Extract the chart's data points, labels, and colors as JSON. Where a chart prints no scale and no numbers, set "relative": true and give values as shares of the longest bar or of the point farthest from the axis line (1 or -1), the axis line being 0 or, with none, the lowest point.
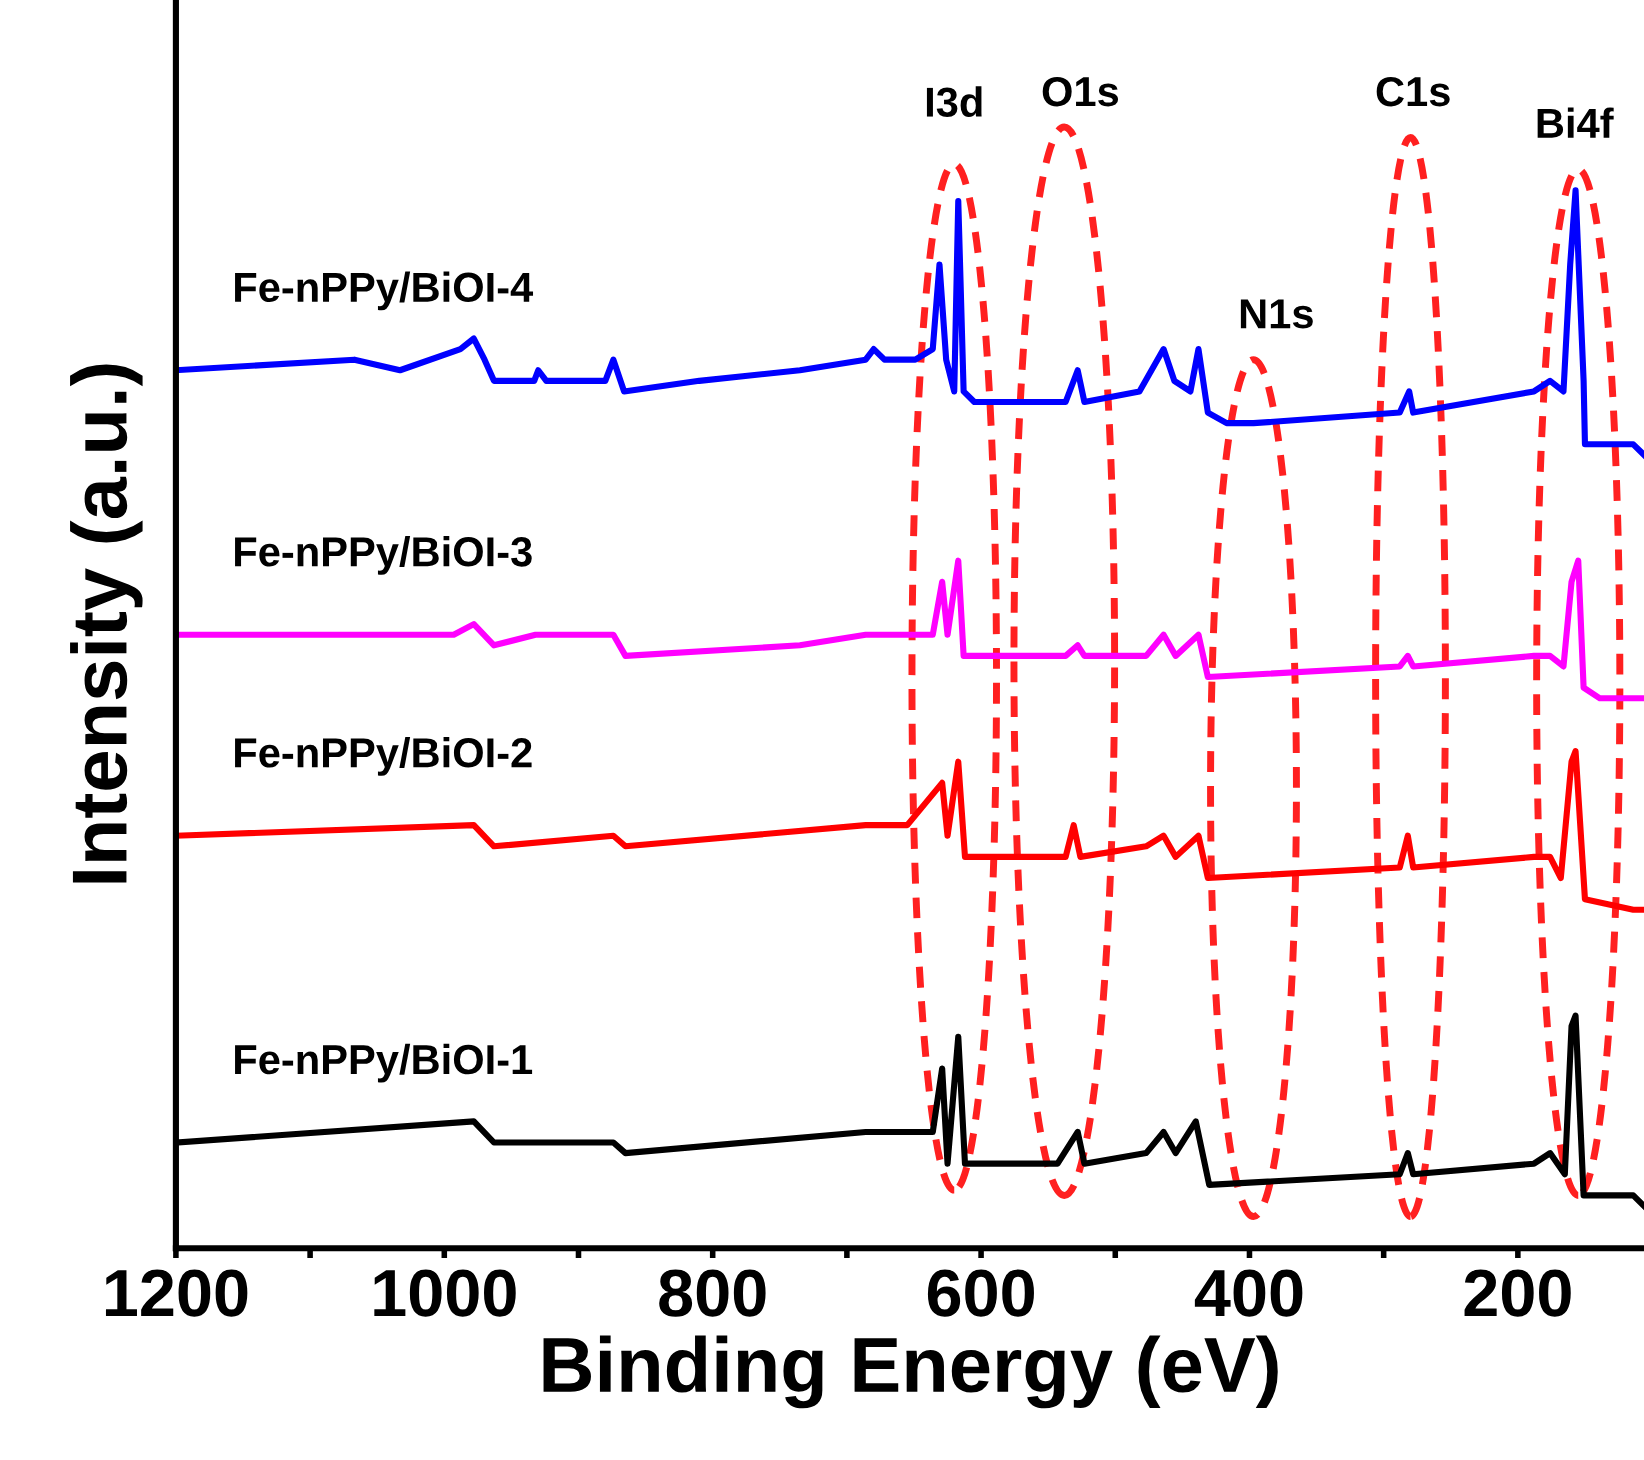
{
  "chart_data": {
    "type": "line",
    "relative": true,
    "xlabel": "Binding Energy (eV)",
    "ylabel": "Intensity (a.u.)",
    "xlim": [
      1200,
      106
    ],
    "xticks": [
      1200,
      {
        "value": 1100,
        "label": null
      },
      1000,
      {
        "value": 900,
        "label": null
      },
      800,
      {
        "value": 700,
        "label": null
      },
      600,
      {
        "value": 500,
        "label": null
      },
      400,
      {
        "value": 300,
        "label": null
      },
      200
    ],
    "tick_labels": "x",
    "grid": false,
    "legend": false,
    "marker": "none",
    "line_style": "solid",
    "annotations": [
      "I3d",
      "O1s",
      "N1s",
      "C1s",
      "Bi4f"
    ],
    "series": [
      {
        "name": "Fe-nPPy/BiOI-1",
        "color": "#000000",
        "x": [
          1200,
          978,
          963,
          874,
          865,
          686,
          672,
          636,
          629,
          625,
          617,
          612,
          543,
          528,
          523,
          477,
          464,
          455,
          440,
          430,
          288,
          282,
          278,
          188,
          176,
          165,
          160,
          157,
          151,
          114,
          106
        ],
        "values": [
          0.1,
          0.12,
          0.1,
          0.1,
          0.09,
          0.11,
          0.11,
          0.11,
          0.17,
          0.08,
          0.2,
          0.08,
          0.08,
          0.11,
          0.08,
          0.09,
          0.11,
          0.09,
          0.12,
          0.06,
          0.07,
          0.09,
          0.07,
          0.08,
          0.09,
          0.07,
          0.21,
          0.22,
          0.05,
          0.05,
          0.04
        ]
      },
      {
        "name": "Fe-nPPy/BiOI-2",
        "color": "#ff0000",
        "x": [
          1200,
          978,
          963,
          874,
          865,
          686,
          672,
          655,
          629,
          625,
          617,
          612,
          537,
          531,
          526,
          477,
          464,
          455,
          438,
          431,
          288,
          282,
          278,
          188,
          176,
          168,
          160,
          157,
          150,
          114,
          106
        ],
        "values": [
          0.39,
          0.4,
          0.38,
          0.39,
          0.38,
          0.4,
          0.4,
          0.4,
          0.44,
          0.39,
          0.46,
          0.37,
          0.37,
          0.4,
          0.37,
          0.38,
          0.39,
          0.37,
          0.39,
          0.35,
          0.36,
          0.39,
          0.36,
          0.37,
          0.37,
          0.35,
          0.46,
          0.47,
          0.33,
          0.32,
          0.32
        ]
      },
      {
        "name": "Fe-nPPy/BiOI-3",
        "color": "#ff00ff",
        "x": [
          1200,
          993,
          978,
          963,
          932,
          874,
          865,
          735,
          686,
          680,
          672,
          656,
          636,
          629,
          625,
          617,
          613,
          537,
          528,
          523,
          477,
          464,
          455,
          438,
          431,
          288,
          282,
          278,
          188,
          176,
          166,
          160,
          155,
          151,
          139,
          106
        ],
        "values": [
          0.58,
          0.58,
          0.59,
          0.57,
          0.58,
          0.58,
          0.56,
          0.57,
          0.58,
          0.58,
          0.58,
          0.58,
          0.58,
          0.63,
          0.58,
          0.65,
          0.56,
          0.56,
          0.57,
          0.56,
          0.56,
          0.58,
          0.56,
          0.58,
          0.54,
          0.55,
          0.56,
          0.55,
          0.56,
          0.56,
          0.55,
          0.63,
          0.65,
          0.53,
          0.52,
          0.52
        ]
      },
      {
        "name": "Fe-nPPy/BiOI-4",
        "color": "#0000ff",
        "x": [
          1200,
          1067,
          1033,
          988,
          978,
          970,
          963,
          933,
          930,
          924,
          880,
          874,
          866,
          810,
          735,
          686,
          680,
          672,
          649,
          636,
          631,
          626,
          620,
          617,
          613,
          605,
          537,
          528,
          523,
          482,
          464,
          456,
          444,
          438,
          431,
          417,
          397,
          288,
          281,
          278,
          188,
          176,
          166,
          161,
          157,
          151,
          150,
          120,
          114,
          106
        ],
        "values": [
          0.83,
          0.84,
          0.83,
          0.85,
          0.86,
          0.84,
          0.82,
          0.82,
          0.83,
          0.82,
          0.82,
          0.84,
          0.81,
          0.82,
          0.83,
          0.84,
          0.85,
          0.84,
          0.84,
          0.85,
          0.93,
          0.84,
          0.81,
          0.99,
          0.81,
          0.8,
          0.8,
          0.83,
          0.8,
          0.81,
          0.85,
          0.82,
          0.81,
          0.85,
          0.79,
          0.78,
          0.78,
          0.79,
          0.81,
          0.79,
          0.81,
          0.82,
          0.81,
          0.93,
          1.0,
          0.82,
          0.76,
          0.76,
          0.76,
          0.75
        ]
      }
    ]
  }
}
